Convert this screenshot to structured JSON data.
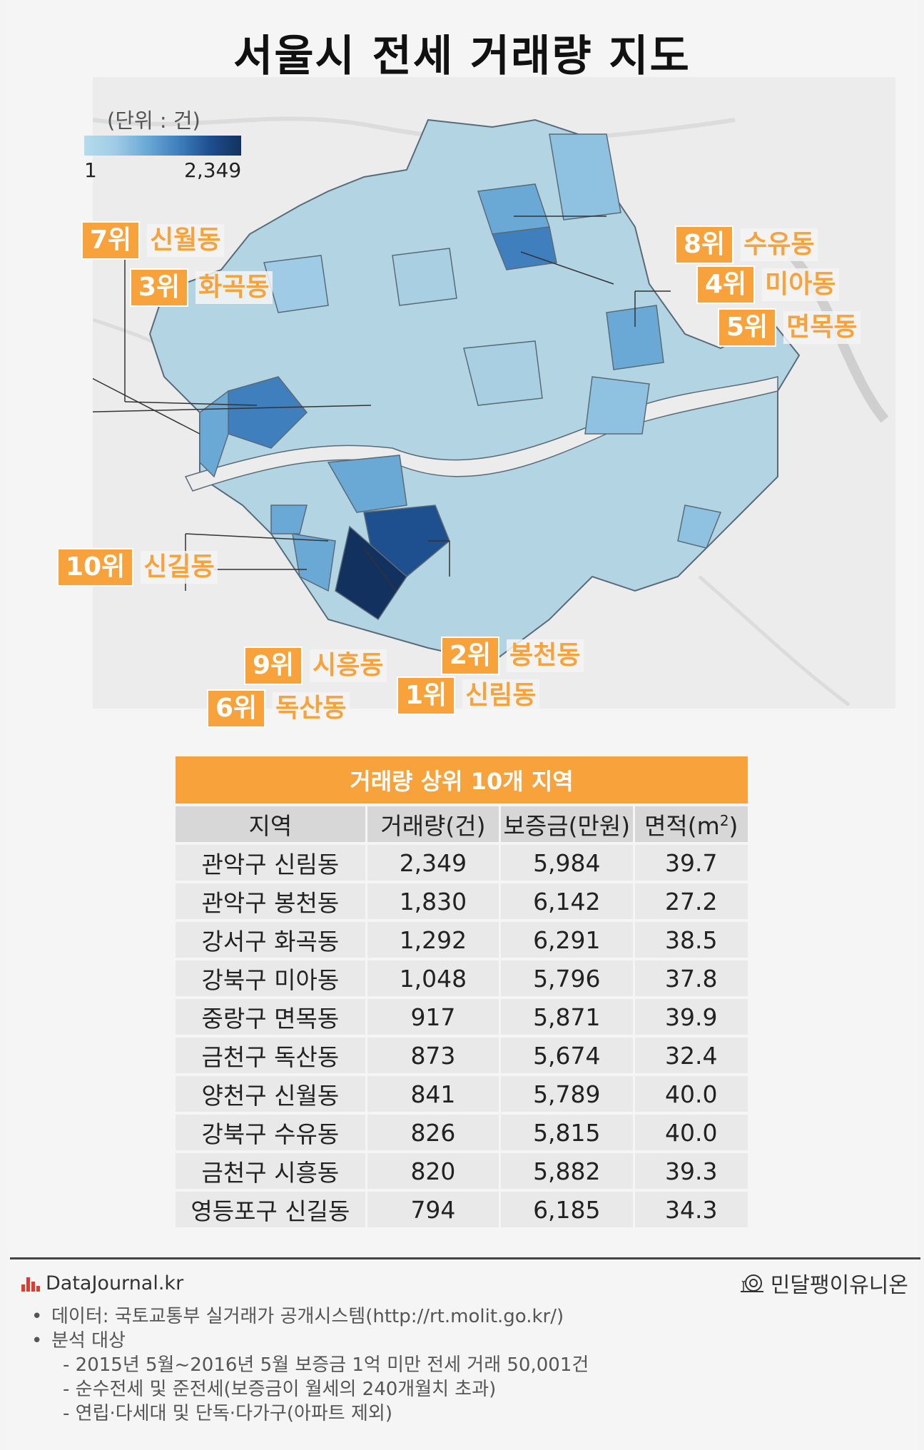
{
  "title": "서울시 전세 거래량 지도",
  "legend": {
    "unit": "(단위 : 건)",
    "min": "1",
    "max": "2,349",
    "colors": [
      "#b4dcec",
      "#9fcbe6",
      "#6aa9d6",
      "#3f7fbd",
      "#1e4f8e",
      "#13315f"
    ]
  },
  "callouts": [
    {
      "rank": "7위",
      "name": "신월동"
    },
    {
      "rank": "3위",
      "name": "화곡동"
    },
    {
      "rank": "10위",
      "name": "신길동"
    },
    {
      "rank": "9위",
      "name": "시흥동"
    },
    {
      "rank": "6위",
      "name": "독산동"
    },
    {
      "rank": "1위",
      "name": "신림동"
    },
    {
      "rank": "2위",
      "name": "봉천동"
    },
    {
      "rank": "8위",
      "name": "수유동"
    },
    {
      "rank": "4위",
      "name": "미아동"
    },
    {
      "rank": "5위",
      "name": "면목동"
    }
  ],
  "table": {
    "title": "거래량 상위 10개 지역",
    "headers": {
      "region": "지역",
      "volume": "거래량(건)",
      "deposit": "보증금(만원)",
      "area": "면적(m",
      "area_sup": "2",
      "area_close": ")"
    },
    "rows": [
      {
        "region": "관악구 신림동",
        "volume": "2,349",
        "deposit": "5,984",
        "area": "39.7"
      },
      {
        "region": "관악구 봉천동",
        "volume": "1,830",
        "deposit": "6,142",
        "area": "27.2"
      },
      {
        "region": "강서구 화곡동",
        "volume": "1,292",
        "deposit": "6,291",
        "area": "38.5"
      },
      {
        "region": "강북구 미아동",
        "volume": "1,048",
        "deposit": "5,796",
        "area": "37.8"
      },
      {
        "region": "중랑구 면목동",
        "volume": "917",
        "deposit": "5,871",
        "area": "39.9"
      },
      {
        "region": "금천구 독산동",
        "volume": "873",
        "deposit": "5,674",
        "area": "32.4"
      },
      {
        "region": "양천구 신월동",
        "volume": "841",
        "deposit": "5,789",
        "area": "40.0"
      },
      {
        "region": "강북구 수유동",
        "volume": "826",
        "deposit": "5,815",
        "area": "40.0"
      },
      {
        "region": "금천구 시흥동",
        "volume": "820",
        "deposit": "5,882",
        "area": "39.3"
      },
      {
        "region": "영등포구 신길동",
        "volume": "794",
        "deposit": "6,185",
        "area": "34.3"
      }
    ]
  },
  "footer": {
    "brand": "DataJournal.kr",
    "partner": "민달팽이유니온",
    "notes": [
      {
        "text": "데이터: 국토교통부 실거래가 공개시스템(http://rt.molit.go.kr/)"
      },
      {
        "text": "분석 대상"
      }
    ],
    "sub_notes": [
      "- 2015년 5월~2016년 5월 보증금 1억 미만 전세 거래 50,001건",
      "- 순수전세 및 준전세(보증금이 월세의 240개월치 초과)",
      "- 연립·다세대 및 단독·다가구(아파트 제외)"
    ]
  }
}
